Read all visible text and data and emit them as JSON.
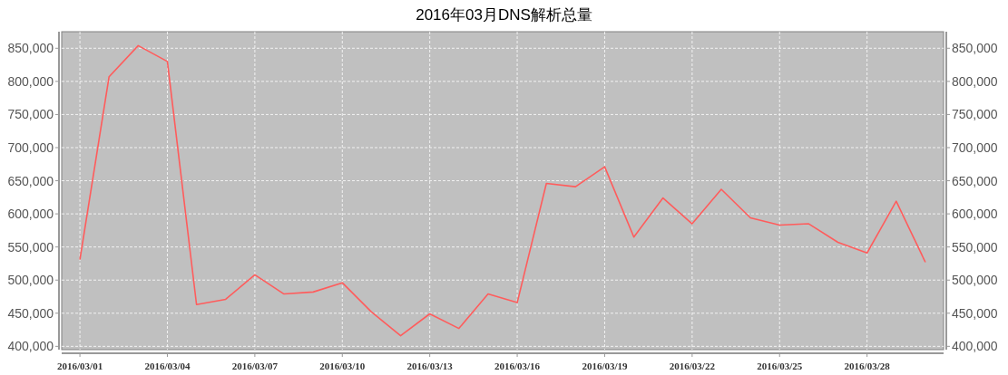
{
  "chart_data": {
    "type": "line",
    "title": "2016年03月DNS解析总量",
    "x": [
      "2016-03-01",
      "2016-03-02",
      "2016-03-03",
      "2016-03-04",
      "2016-03-05",
      "2016-03-06",
      "2016-03-07",
      "2016-03-08",
      "2016-03-09",
      "2016-03-10",
      "2016-03-11",
      "2016-03-12",
      "2016-03-13",
      "2016-03-14",
      "2016-03-15",
      "2016-03-16",
      "2016-03-17",
      "2016-03-18",
      "2016-03-19",
      "2016-03-20",
      "2016-03-21",
      "2016-03-22",
      "2016-03-23",
      "2016-03-24",
      "2016-03-25",
      "2016-03-26",
      "2016-03-27",
      "2016-03-28",
      "2016-03-29",
      "2016-03-30"
    ],
    "series": [
      {
        "color": "#ff5c5c",
        "values": [
          531000,
          807000,
          854000,
          830000,
          463000,
          471000,
          508000,
          479000,
          482000,
          496000,
          452000,
          416000,
          449000,
          427000,
          479000,
          466000,
          646000,
          641000,
          671000,
          565000,
          624000,
          585000,
          637000,
          594000,
          583000,
          585000,
          557000,
          541000,
          619000,
          527000
        ]
      }
    ],
    "xlim": [
      "2016-02-29T09:00",
      "2016-03-30T15:00"
    ],
    "xticks": [
      {
        "value": "2016-03-01",
        "label": "2016/03/01"
      },
      {
        "value": "2016-03-04",
        "label": "2016/03/04"
      },
      {
        "value": "2016-03-07",
        "label": "2016/03/07"
      },
      {
        "value": "2016-03-10",
        "label": "2016/03/10"
      },
      {
        "value": "2016-03-13",
        "label": "2016/03/13"
      },
      {
        "value": "2016-03-16",
        "label": "2016/03/16"
      },
      {
        "value": "2016-03-19",
        "label": "2016/03/19"
      },
      {
        "value": "2016-03-22",
        "label": "2016/03/22"
      },
      {
        "value": "2016-03-25",
        "label": "2016/03/25"
      },
      {
        "value": "2016-03-28",
        "label": "2016/03/28"
      }
    ],
    "ylim": [
      395000,
      875000
    ],
    "yticks": [
      {
        "value": 400000,
        "label": "400,000"
      },
      {
        "value": 450000,
        "label": "450,000"
      },
      {
        "value": 500000,
        "label": "500,000"
      },
      {
        "value": 550000,
        "label": "550,000"
      },
      {
        "value": 600000,
        "label": "600,000"
      },
      {
        "value": 650000,
        "label": "650,000"
      },
      {
        "value": 700000,
        "label": "700,000"
      },
      {
        "value": 750000,
        "label": "750,000"
      },
      {
        "value": 800000,
        "label": "800,000"
      },
      {
        "value": 850000,
        "label": "850,000"
      }
    ],
    "y2lim": [
      395000,
      875000
    ],
    "y2ticks": [
      {
        "value": 400000,
        "label": "400,000"
      },
      {
        "value": 450000,
        "label": "450,000"
      },
      {
        "value": 500000,
        "label": "500,000"
      },
      {
        "value": 550000,
        "label": "550,000"
      },
      {
        "value": 600000,
        "label": "600,000"
      },
      {
        "value": 650000,
        "label": "650,000"
      },
      {
        "value": 700000,
        "label": "700,000"
      },
      {
        "value": 750000,
        "label": "750,000"
      },
      {
        "value": 800000,
        "label": "800,000"
      },
      {
        "value": 850000,
        "label": "850,000"
      }
    ],
    "grid": true,
    "marker": "none",
    "line_style": "solid"
  }
}
